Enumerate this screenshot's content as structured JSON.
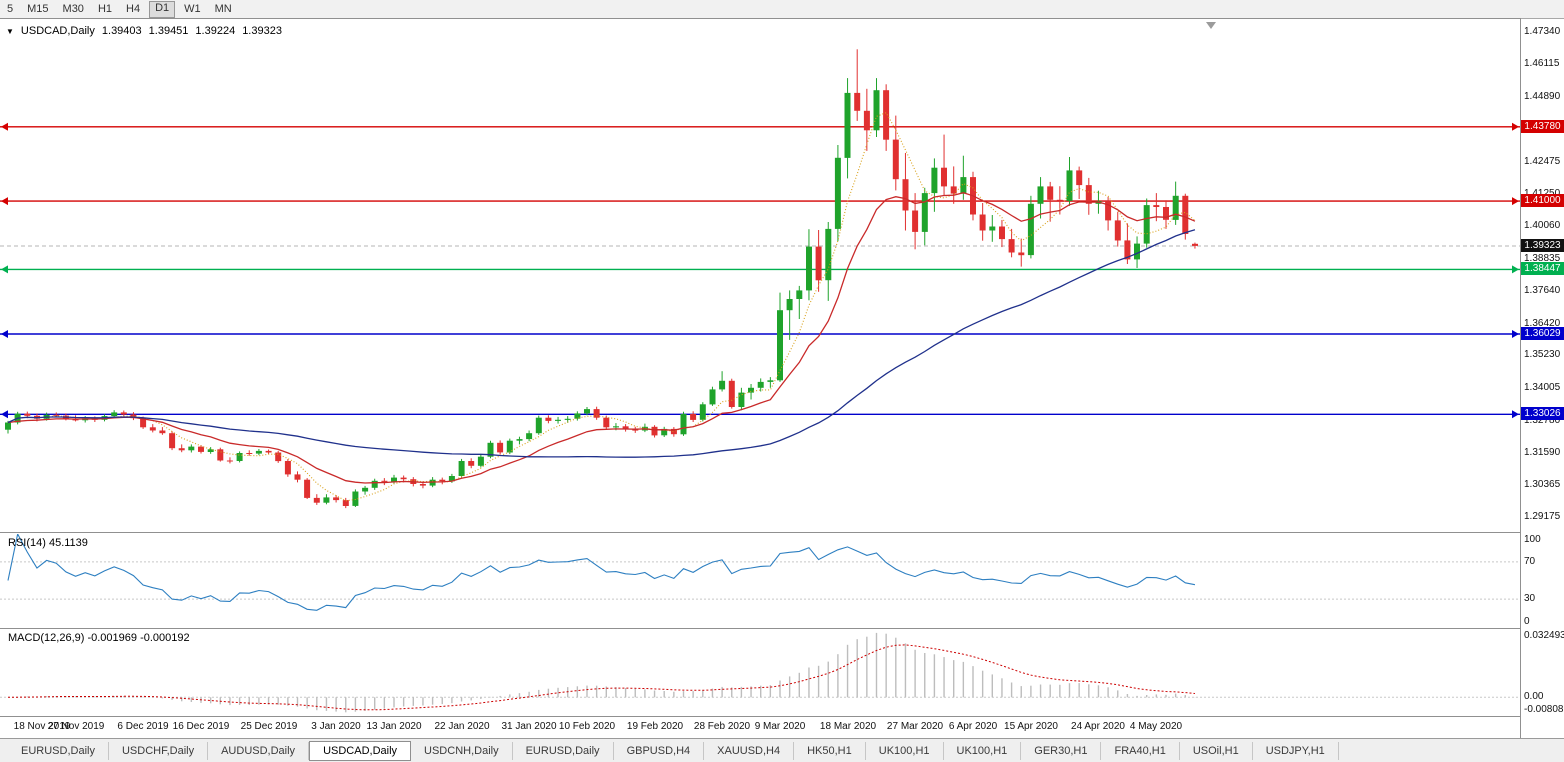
{
  "toolbar": {
    "timeframes": [
      {
        "label": "5",
        "active": false
      },
      {
        "label": "M15",
        "active": false
      },
      {
        "label": "M30",
        "active": false
      },
      {
        "label": "H1",
        "active": false
      },
      {
        "label": "H4",
        "active": false
      },
      {
        "label": "D1",
        "active": true
      },
      {
        "label": "W1",
        "active": false
      },
      {
        "label": "MN",
        "active": false
      }
    ]
  },
  "chart": {
    "dropdown_icon": "▼",
    "title": "USDCAD,Daily",
    "ohlc_text": {
      "open": "1.39403",
      "high": "1.39451",
      "low": "1.39224",
      "close": "1.39323"
    },
    "price_axis_ticks": [
      "1.47340",
      "1.46115",
      "1.44890",
      "1.43665",
      "1.42475",
      "1.41250",
      "1.40060",
      "1.38835",
      "1.37640",
      "1.36420",
      "1.35230",
      "1.34005",
      "1.32780",
      "1.31590",
      "1.30365",
      "1.29175"
    ],
    "levels": [
      {
        "label": "1.43780",
        "price": 1.4378,
        "color": "#d40000"
      },
      {
        "label": "1.41000",
        "price": 1.41,
        "color": "#d40000"
      },
      {
        "label": "1.38447",
        "price": 1.38447,
        "color": "#00b050"
      },
      {
        "label": "1.36029",
        "price": 1.36029,
        "color": "#0000cc"
      },
      {
        "label": "1.33026",
        "price": 1.33026,
        "color": "#0000cc"
      }
    ],
    "current_price": {
      "label": "1.39323",
      "price": 1.39323,
      "badge_color": "#111111"
    }
  },
  "rsi": {
    "label": "RSI(14) 45.1139",
    "axis_labels": [
      "100",
      "70",
      "30",
      "0"
    ]
  },
  "macd": {
    "label": "MACD(12,26,9) -0.001969 -0.000192",
    "axis_labels_top": "0.032493",
    "axis_label_zero": "0.00",
    "axis_label_bottom": "-0.008086"
  },
  "time_axis": [
    {
      "t": "18 Nov 2019",
      "i": 0
    },
    {
      "t": "27 Nov 2019",
      "i": 7
    },
    {
      "t": "6 Dec 2019",
      "i": 14
    },
    {
      "t": "16 Dec 2019",
      "i": 20
    },
    {
      "t": "25 Dec 2019",
      "i": 27
    },
    {
      "t": "3 Jan 2020",
      "i": 34
    },
    {
      "t": "13 Jan 2020",
      "i": 40
    },
    {
      "t": "22 Jan 2020",
      "i": 47
    },
    {
      "t": "31 Jan 2020",
      "i": 54
    },
    {
      "t": "10 Feb 2020",
      "i": 60
    },
    {
      "t": "19 Feb 2020",
      "i": 67
    },
    {
      "t": "28 Feb 2020",
      "i": 74
    },
    {
      "t": "9 Mar 2020",
      "i": 80
    },
    {
      "t": "18 Mar 2020",
      "i": 87
    },
    {
      "t": "27 Mar 2020",
      "i": 94
    },
    {
      "t": "6 Apr 2020",
      "i": 100
    },
    {
      "t": "15 Apr 2020",
      "i": 106
    },
    {
      "t": "24 Apr 2020",
      "i": 113
    },
    {
      "t": "4 May 2020",
      "i": 119
    }
  ],
  "tabs": [
    {
      "label": "EURUSD,Daily",
      "active": false
    },
    {
      "label": "USDCHF,Daily",
      "active": false
    },
    {
      "label": "AUDUSD,Daily",
      "active": false
    },
    {
      "label": "USDCAD,Daily",
      "active": true
    },
    {
      "label": "USDCNH,Daily",
      "active": false
    },
    {
      "label": "EURUSD,Daily",
      "active": false
    },
    {
      "label": "GBPUSD,H4",
      "active": false
    },
    {
      "label": "XAUUSD,H4",
      "active": false
    },
    {
      "label": "HK50,H1",
      "active": false
    },
    {
      "label": "UK100,H1",
      "active": false
    },
    {
      "label": "UK100,H1",
      "active": false
    },
    {
      "label": "GER30,H1",
      "active": false
    },
    {
      "label": "FRA40,H1",
      "active": false
    },
    {
      "label": "USOil,H1",
      "active": false
    },
    {
      "label": "USDJPY,H1",
      "active": false
    }
  ],
  "colors": {
    "up": "#1fa32b",
    "down": "#e03030",
    "ma_fast": "#d8a019",
    "ma_mid": "#c92a2a",
    "ma_slow": "#20318c",
    "rsi": "#2d7fc1",
    "macd_hist": "#bdbdbd",
    "macd_signal": "#cc0000",
    "current_line": "#b5b5b5"
  },
  "chart_data": {
    "type": "candlestick",
    "title": "USDCAD,Daily",
    "ylim": [
      1.287,
      1.477
    ],
    "indicator_params": {
      "rsi_period": 14,
      "macd": [
        12,
        26,
        9
      ],
      "ma_fast_period": 5,
      "ma_mid_period": 13,
      "ma_slow_period": 50
    },
    "ohlc": [
      [
        1.3245,
        1.3278,
        1.3231,
        1.3272
      ],
      [
        1.3272,
        1.3312,
        1.3265,
        1.3305
      ],
      [
        1.3305,
        1.3313,
        1.3288,
        1.3297
      ],
      [
        1.3297,
        1.3306,
        1.3276,
        1.3286
      ],
      [
        1.3286,
        1.3309,
        1.3279,
        1.3301
      ],
      [
        1.3301,
        1.331,
        1.3292,
        1.3298
      ],
      [
        1.3298,
        1.3306,
        1.328,
        1.3287
      ],
      [
        1.3287,
        1.3299,
        1.3276,
        1.328
      ],
      [
        1.328,
        1.3296,
        1.3272,
        1.3288
      ],
      [
        1.3288,
        1.3295,
        1.3274,
        1.3282
      ],
      [
        1.3282,
        1.3303,
        1.3276,
        1.3296
      ],
      [
        1.3296,
        1.3318,
        1.3289,
        1.331
      ],
      [
        1.331,
        1.3317,
        1.3295,
        1.3302
      ],
      [
        1.3302,
        1.3311,
        1.3281,
        1.3288
      ],
      [
        1.3288,
        1.3294,
        1.3248,
        1.3254
      ],
      [
        1.3254,
        1.3266,
        1.3235,
        1.3242
      ],
      [
        1.3242,
        1.3255,
        1.3226,
        1.3232
      ],
      [
        1.3232,
        1.3239,
        1.3169,
        1.3176
      ],
      [
        1.3176,
        1.319,
        1.3161,
        1.3168
      ],
      [
        1.3168,
        1.319,
        1.316,
        1.3182
      ],
      [
        1.3182,
        1.3188,
        1.3156,
        1.3162
      ],
      [
        1.3162,
        1.318,
        1.3155,
        1.3172
      ],
      [
        1.3172,
        1.3178,
        1.3126,
        1.313
      ],
      [
        1.313,
        1.3142,
        1.3119,
        1.3128
      ],
      [
        1.3128,
        1.3164,
        1.3123,
        1.3158
      ],
      [
        1.3158,
        1.3168,
        1.3148,
        1.3156
      ],
      [
        1.3156,
        1.3173,
        1.315,
        1.3166
      ],
      [
        1.3166,
        1.3171,
        1.3154,
        1.316
      ],
      [
        1.316,
        1.3166,
        1.3121,
        1.3128
      ],
      [
        1.3128,
        1.3135,
        1.3069,
        1.3078
      ],
      [
        1.3078,
        1.3089,
        1.3048,
        1.3058
      ],
      [
        1.3058,
        1.3064,
        1.2986,
        1.299
      ],
      [
        1.299,
        1.3004,
        1.2964,
        1.2972
      ],
      [
        1.2972,
        1.3004,
        1.2966,
        1.2992
      ],
      [
        1.2992,
        1.3001,
        1.2973,
        1.2982
      ],
      [
        1.2982,
        1.299,
        1.2952,
        1.296
      ],
      [
        1.296,
        1.3022,
        1.2956,
        1.3014
      ],
      [
        1.3014,
        1.3035,
        1.3002,
        1.3028
      ],
      [
        1.3028,
        1.3062,
        1.302,
        1.3054
      ],
      [
        1.3054,
        1.3064,
        1.3038,
        1.305
      ],
      [
        1.305,
        1.3076,
        1.3042,
        1.3066
      ],
      [
        1.3066,
        1.3074,
        1.3048,
        1.306
      ],
      [
        1.306,
        1.3068,
        1.3033,
        1.3042
      ],
      [
        1.3042,
        1.3052,
        1.3026,
        1.3036
      ],
      [
        1.3036,
        1.3068,
        1.303,
        1.3058
      ],
      [
        1.3058,
        1.3066,
        1.3041,
        1.3052
      ],
      [
        1.3052,
        1.308,
        1.3046,
        1.3072
      ],
      [
        1.3072,
        1.3136,
        1.3066,
        1.3128
      ],
      [
        1.3128,
        1.3138,
        1.3101,
        1.311
      ],
      [
        1.311,
        1.3152,
        1.3104,
        1.3144
      ],
      [
        1.3144,
        1.3204,
        1.3138,
        1.3196
      ],
      [
        1.3196,
        1.3205,
        1.3152,
        1.316
      ],
      [
        1.316,
        1.3212,
        1.3154,
        1.3204
      ],
      [
        1.3204,
        1.3219,
        1.319,
        1.321
      ],
      [
        1.321,
        1.3242,
        1.3202,
        1.3232
      ],
      [
        1.3232,
        1.3298,
        1.3226,
        1.329
      ],
      [
        1.329,
        1.3299,
        1.3269,
        1.3278
      ],
      [
        1.3278,
        1.3293,
        1.3268,
        1.3282
      ],
      [
        1.3282,
        1.3296,
        1.3271,
        1.3286
      ],
      [
        1.3286,
        1.3314,
        1.3279,
        1.3306
      ],
      [
        1.3306,
        1.333,
        1.3299,
        1.3322
      ],
      [
        1.3322,
        1.3331,
        1.3282,
        1.329
      ],
      [
        1.329,
        1.3298,
        1.3247,
        1.3254
      ],
      [
        1.3254,
        1.327,
        1.3243,
        1.3258
      ],
      [
        1.3258,
        1.3266,
        1.3238,
        1.3246
      ],
      [
        1.3246,
        1.3256,
        1.3233,
        1.3242
      ],
      [
        1.3242,
        1.3268,
        1.3236,
        1.3256
      ],
      [
        1.3256,
        1.3262,
        1.3216,
        1.3224
      ],
      [
        1.3224,
        1.3256,
        1.3218,
        1.3248
      ],
      [
        1.3248,
        1.3255,
        1.3219,
        1.3228
      ],
      [
        1.3228,
        1.3312,
        1.3222,
        1.3304
      ],
      [
        1.3304,
        1.3314,
        1.3274,
        1.3282
      ],
      [
        1.3282,
        1.3348,
        1.3276,
        1.334
      ],
      [
        1.334,
        1.3406,
        1.3334,
        1.3396
      ],
      [
        1.3396,
        1.3464,
        1.3388,
        1.3428
      ],
      [
        1.3428,
        1.3436,
        1.3324,
        1.333
      ],
      [
        1.333,
        1.3402,
        1.3318,
        1.3384
      ],
      [
        1.3384,
        1.3416,
        1.3358,
        1.3402
      ],
      [
        1.3402,
        1.3437,
        1.3388,
        1.3424
      ],
      [
        1.3424,
        1.3442,
        1.3402,
        1.343
      ],
      [
        1.343,
        1.3758,
        1.3424,
        1.3692
      ],
      [
        1.3692,
        1.3766,
        1.3581,
        1.3734
      ],
      [
        1.3734,
        1.3783,
        1.3659,
        1.3766
      ],
      [
        1.3766,
        1.3995,
        1.3729,
        1.393
      ],
      [
        1.393,
        1.3992,
        1.3761,
        1.3804
      ],
      [
        1.3804,
        1.4022,
        1.3727,
        1.3996
      ],
      [
        1.3996,
        1.431,
        1.395,
        1.4262
      ],
      [
        1.4262,
        1.456,
        1.4185,
        1.4505
      ],
      [
        1.4505,
        1.4668,
        1.44,
        1.4438
      ],
      [
        1.4438,
        1.452,
        1.4288,
        1.4365
      ],
      [
        1.4365,
        1.456,
        1.434,
        1.4515
      ],
      [
        1.4515,
        1.4537,
        1.4288,
        1.433
      ],
      [
        1.433,
        1.442,
        1.414,
        1.4182
      ],
      [
        1.4182,
        1.428,
        1.399,
        1.4065
      ],
      [
        1.4065,
        1.413,
        1.392,
        1.3985
      ],
      [
        1.3985,
        1.415,
        1.3935,
        1.413
      ],
      [
        1.413,
        1.426,
        1.406,
        1.4225
      ],
      [
        1.4225,
        1.4349,
        1.412,
        1.4155
      ],
      [
        1.4155,
        1.423,
        1.409,
        1.4128
      ],
      [
        1.4128,
        1.427,
        1.4105,
        1.419
      ],
      [
        1.419,
        1.421,
        1.4028,
        1.405
      ],
      [
        1.405,
        1.4093,
        1.3952,
        1.399
      ],
      [
        1.399,
        1.4048,
        1.3948,
        1.4005
      ],
      [
        1.4005,
        1.403,
        1.3928,
        1.3958
      ],
      [
        1.3958,
        1.3996,
        1.389,
        1.3908
      ],
      [
        1.3908,
        1.396,
        1.3855,
        1.3898
      ],
      [
        1.3898,
        1.412,
        1.3886,
        1.409
      ],
      [
        1.409,
        1.419,
        1.4035,
        1.4155
      ],
      [
        1.4155,
        1.4172,
        1.4023,
        1.4105
      ],
      [
        1.4105,
        1.4156,
        1.405,
        1.4101
      ],
      [
        1.4101,
        1.4265,
        1.4082,
        1.4215
      ],
      [
        1.4215,
        1.4229,
        1.4108,
        1.416
      ],
      [
        1.416,
        1.4187,
        1.4049,
        1.409
      ],
      [
        1.409,
        1.4139,
        1.4053,
        1.41
      ],
      [
        1.41,
        1.4116,
        1.399,
        1.4028
      ],
      [
        1.4028,
        1.406,
        1.393,
        1.3953
      ],
      [
        1.3953,
        1.4017,
        1.3865,
        1.3882
      ],
      [
        1.3882,
        1.3968,
        1.385,
        1.3941
      ],
      [
        1.3941,
        1.411,
        1.3926,
        1.4085
      ],
      [
        1.4085,
        1.413,
        1.4025,
        1.4078
      ],
      [
        1.4078,
        1.4103,
        1.3996,
        1.403
      ],
      [
        1.403,
        1.4173,
        1.4011,
        1.412
      ],
      [
        1.412,
        1.4128,
        1.3956,
        1.3977
      ],
      [
        1.39403,
        1.39451,
        1.39224,
        1.39323
      ]
    ]
  }
}
